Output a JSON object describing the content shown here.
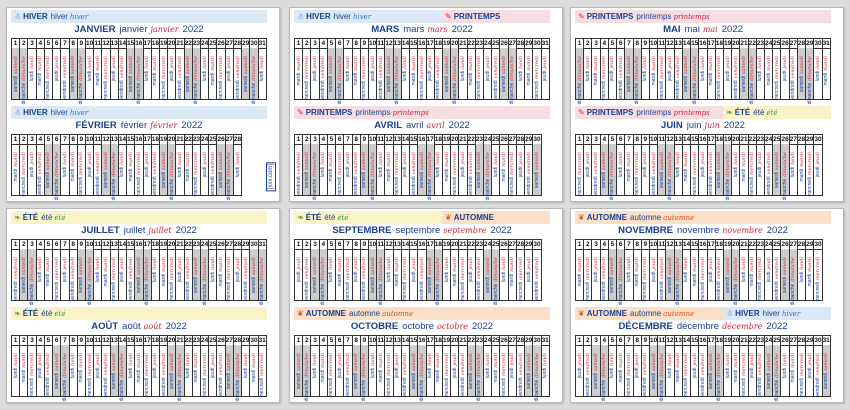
{
  "sheets": [
    {
      "months": [
        {
          "season_bands": [
            {
              "season": "winter",
              "upper": "HIVER",
              "lower": "hiver",
              "script": "hiver",
              "color": "#dbe9f6"
            }
          ],
          "name_upper": "JANVIER",
          "name_lower": "janvier",
          "name_script": "janvier",
          "year": "2022",
          "days": 31,
          "first_weekday": 5
        },
        {
          "season_bands": [
            {
              "season": "winter",
              "upper": "HIVER",
              "lower": "hiver",
              "script": "hiver",
              "color": "#dbe9f6"
            }
          ],
          "name_upper": "FÉVRIER",
          "name_lower": "février",
          "name_script": "février",
          "year": "2022",
          "days": 28,
          "first_weekday": 1
        }
      ],
      "logo": "[xxx.com]"
    },
    {
      "months": [
        {
          "season_bands": [
            {
              "season": "winter",
              "upper": "HIVER",
              "lower": "hiver",
              "script": "hiver",
              "color": "#dbe9f6"
            },
            {
              "season": "spring",
              "upper": "PRINTEMPS",
              "lower": "",
              "script": "",
              "color": "#f6dde2"
            }
          ],
          "name_upper": "MARS",
          "name_lower": "mars",
          "name_script": "mars",
          "year": "2022",
          "days": 31,
          "first_weekday": 1
        },
        {
          "season_bands": [
            {
              "season": "spring",
              "upper": "PRINTEMPS",
              "lower": "printemps",
              "script": "printemps",
              "color": "#f6dde2"
            }
          ],
          "name_upper": "AVRIL",
          "name_lower": "avril",
          "name_script": "avril",
          "year": "2022",
          "days": 30,
          "first_weekday": 4
        }
      ]
    },
    {
      "months": [
        {
          "season_bands": [
            {
              "season": "spring",
              "upper": "PRINTEMPS",
              "lower": "printemps",
              "script": "printemps",
              "color": "#f6dde2"
            }
          ],
          "name_upper": "MAI",
          "name_lower": "mai",
          "name_script": "mai",
          "year": "2022",
          "days": 31,
          "first_weekday": 6
        },
        {
          "season_bands": [
            {
              "season": "spring",
              "upper": "PRINTEMPS",
              "lower": "printemps",
              "script": "printemps",
              "color": "#f6dde2"
            },
            {
              "season": "summer",
              "upper": "ÉTÉ",
              "lower": "été",
              "script": "été",
              "color": "#fbf3c8"
            }
          ],
          "name_upper": "JUIN",
          "name_lower": "juin",
          "name_script": "juin",
          "year": "2022",
          "days": 30,
          "first_weekday": 2
        }
      ]
    },
    {
      "months": [
        {
          "season_bands": [
            {
              "season": "summer",
              "upper": "ÉTÉ",
              "lower": "été",
              "script": "été",
              "color": "#fbf3c8"
            }
          ],
          "name_upper": "JUILLET",
          "name_lower": "juillet",
          "name_script": "juillet",
          "year": "2022",
          "days": 31,
          "first_weekday": 4
        },
        {
          "season_bands": [
            {
              "season": "summer",
              "upper": "ÉTÉ",
              "lower": "été",
              "script": "été",
              "color": "#fbf3c8"
            }
          ],
          "name_upper": "AOÛT",
          "name_lower": "août",
          "name_script": "août",
          "year": "2022",
          "days": 31,
          "first_weekday": 0
        }
      ]
    },
    {
      "months": [
        {
          "season_bands": [
            {
              "season": "summer",
              "upper": "ÉTÉ",
              "lower": "été",
              "script": "été",
              "color": "#fbf3c8"
            },
            {
              "season": "autumn",
              "upper": "AUTOMNE",
              "lower": "",
              "script": "",
              "color": "#f9e0c8"
            }
          ],
          "name_upper": "SEPTEMBRE",
          "name_lower": "septembre",
          "name_script": "septembre",
          "year": "2022",
          "days": 30,
          "first_weekday": 3
        },
        {
          "season_bands": [
            {
              "season": "autumn",
              "upper": "AUTOMNE",
              "lower": "automne",
              "script": "automne",
              "color": "#f9e0c8"
            }
          ],
          "name_upper": "OCTOBRE",
          "name_lower": "octobre",
          "name_script": "octobre",
          "year": "2022",
          "days": 31,
          "first_weekday": 5
        }
      ]
    },
    {
      "months": [
        {
          "season_bands": [
            {
              "season": "autumn",
              "upper": "AUTOMNE",
              "lower": "automne",
              "script": "automne",
              "color": "#f9e0c8"
            }
          ],
          "name_upper": "NOVEMBRE",
          "name_lower": "novembre",
          "name_script": "novembre",
          "year": "2022",
          "days": 30,
          "first_weekday": 1
        },
        {
          "season_bands": [
            {
              "season": "autumn",
              "upper": "AUTOMNE",
              "lower": "automne",
              "script": "automne",
              "color": "#f9e0c8"
            },
            {
              "season": "winter",
              "upper": "HIVER",
              "lower": "hiver",
              "script": "hiver",
              "color": "#dbe9f6"
            }
          ],
          "name_upper": "DÉCEMBRE",
          "name_lower": "décembre",
          "name_script": "décembre",
          "year": "2022",
          "days": 31,
          "first_weekday": 3
        }
      ]
    }
  ],
  "weekdays": [
    {
      "lower": "lundi",
      "script": "lundi"
    },
    {
      "lower": "mardi",
      "script": "mardi"
    },
    {
      "lower": "mercredi",
      "script": "mercredi"
    },
    {
      "lower": "jeudi",
      "script": "jeudi"
    },
    {
      "lower": "vendredi",
      "script": "vendredi"
    },
    {
      "lower": "samedi",
      "script": "samedi"
    },
    {
      "lower": "dimanche",
      "script": "dimanche"
    }
  ],
  "season_icons": {
    "winter": "snowman-icon",
    "spring": "bird-icon",
    "summer": "leaf-icon",
    "autumn": "maple-leaf-icon"
  },
  "colors": {
    "text_blue": "#1a3f8f",
    "script_red": "#c4283e",
    "weekend_gray": "#cdcdcd"
  }
}
